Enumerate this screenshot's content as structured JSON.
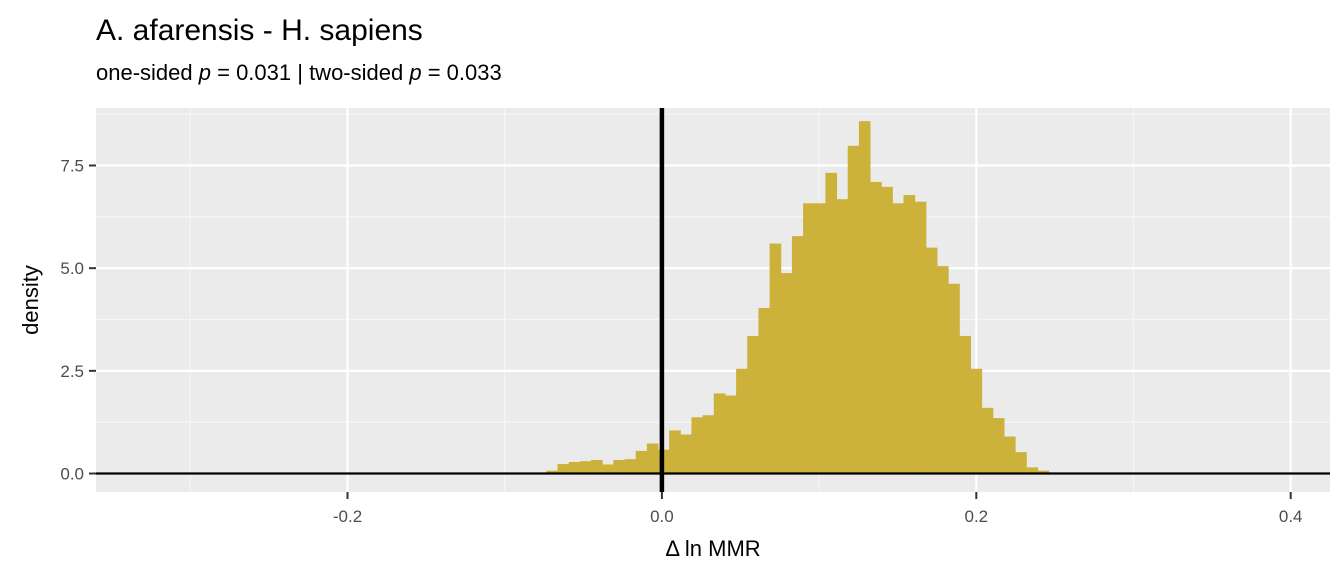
{
  "chart_data": {
    "type": "bar",
    "title": "A. afarensis - H. sapiens",
    "subtitle": {
      "prefix": "one-sided ",
      "p_symbol": "p",
      "part1": " = 0.031 | two-sided ",
      "part2": " = 0.033"
    },
    "xlabel": "Δ ln MMR",
    "ylabel": "density",
    "xlim": [
      -0.36,
      0.425
    ],
    "ylim": [
      -0.45,
      8.9
    ],
    "x_ticks": [
      -0.2,
      0.0,
      0.2,
      0.4
    ],
    "x_tick_labels": [
      "-0.2",
      "0.0",
      "0.2",
      "0.4"
    ],
    "y_ticks": [
      0,
      2.5,
      5,
      7.5
    ],
    "y_tick_labels": [
      "0.0",
      "2.5",
      "5.0",
      "7.5"
    ],
    "bin_width": 0.0071,
    "bin_start": -0.0735,
    "densities": [
      0.07,
      0.23,
      0.28,
      0.3,
      0.33,
      0.22,
      0.33,
      0.35,
      0.55,
      0.73,
      0.58,
      1.05,
      0.95,
      1.37,
      1.42,
      1.95,
      1.9,
      2.55,
      3.35,
      4.03,
      5.6,
      4.88,
      5.78,
      6.58,
      6.58,
      7.32,
      6.68,
      7.98,
      8.58,
      7.1,
      6.98,
      6.58,
      6.78,
      6.62,
      5.5,
      5.05,
      4.62,
      3.35,
      2.55,
      1.6,
      1.35,
      0.9,
      0.52,
      0.15,
      0.07
    ],
    "vline_x": 0,
    "hline_y": 0,
    "colors": {
      "bar": "#ccb13b",
      "panel": "#ebebeb",
      "grid_major": "#ffffff",
      "grid_minor": "#f5f5f5",
      "reference_line": "#000000"
    },
    "grid": true,
    "legend": "none"
  }
}
